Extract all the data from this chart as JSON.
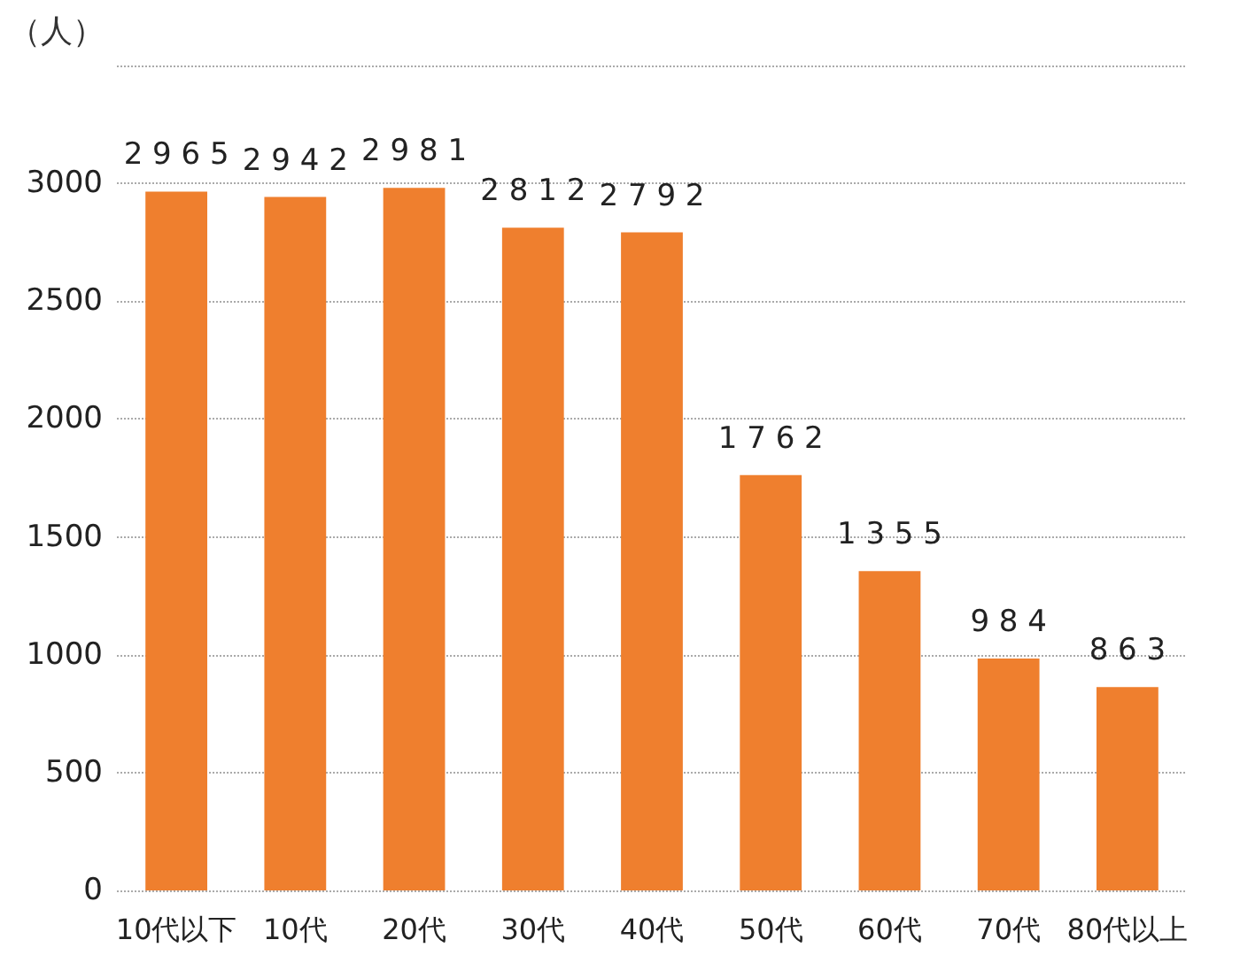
{
  "chart_data": {
    "type": "bar",
    "ylabel": "（人）",
    "categories": [
      "10代以下",
      "10代",
      "20代",
      "30代",
      "40代",
      "50代",
      "60代",
      "70代",
      "80代以上"
    ],
    "values": [
      2965,
      2942,
      2981,
      2812,
      2792,
      1762,
      1355,
      984,
      863
    ],
    "color": "#ef7f2e",
    "ylim": [
      0,
      3500
    ],
    "yticks": [
      0,
      500,
      1000,
      1500,
      2000,
      2500,
      3000,
      {
        "value": 3500,
        "label": null
      }
    ],
    "grid": "y",
    "data_labels": true
  }
}
